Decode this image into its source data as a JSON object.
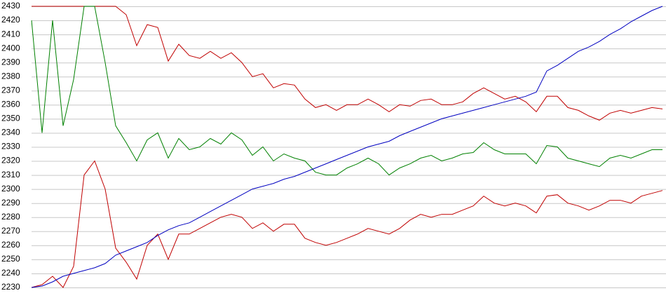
{
  "chart_data": {
    "type": "line",
    "categories": [
      null,
      null,
      null,
      null,
      null,
      null,
      null,
      null,
      null,
      null,
      null,
      null,
      null,
      null,
      null,
      null,
      null,
      null,
      null,
      null,
      null,
      null,
      null,
      null,
      null,
      null,
      null,
      null,
      null,
      null,
      null,
      null,
      null,
      null,
      null,
      null,
      null,
      null,
      null,
      null,
      null,
      null,
      null,
      null,
      null,
      null,
      null,
      null,
      null,
      null,
      null,
      null,
      null,
      null,
      null,
      null,
      null,
      null,
      null,
      null,
      null
    ],
    "series": [
      {
        "color": "#c00000",
        "values": [
          2430,
          2430,
          2430,
          2430,
          2430,
          2430,
          2430,
          2430,
          2430,
          2424,
          2402,
          2417,
          2415,
          2391,
          2403,
          2395,
          2393,
          2398,
          2393,
          2397,
          2390,
          2380,
          2382,
          2372,
          2375,
          2374,
          2364,
          2358,
          2360,
          2356,
          2360,
          2360,
          2364,
          2360,
          2355,
          2360,
          2359,
          2363,
          2364,
          2360,
          2360,
          2362,
          2368,
          2372,
          2368,
          2364,
          2366,
          2362,
          2355,
          2366,
          2366,
          2358,
          2356,
          2352,
          2349,
          2354,
          2356,
          2354,
          2356,
          2358,
          2357
        ]
      },
      {
        "color": "#008000",
        "values": [
          2420,
          2340,
          2420,
          2345,
          2378,
          2430,
          2430,
          2390,
          2345,
          2333,
          2320,
          2335,
          2340,
          2322,
          2336,
          2328,
          2330,
          2336,
          2332,
          2340,
          2335,
          2324,
          2330,
          2320,
          2325,
          2322,
          2320,
          2312,
          2310,
          2310,
          2315,
          2318,
          2322,
          2318,
          2310,
          2315,
          2318,
          2322,
          2324,
          2320,
          2322,
          2325,
          2326,
          2333,
          2328,
          2325,
          2325,
          2325,
          2318,
          2331,
          2330,
          2322,
          2320,
          2318,
          2316,
          2322,
          2324,
          2322,
          2325,
          2328,
          2328
        ]
      },
      {
        "color": "#c00000",
        "values": [
          2230,
          2232,
          2238,
          2230,
          2245,
          2310,
          2320,
          2300,
          2258,
          2248,
          2236,
          2260,
          2268,
          2250,
          2268,
          2268,
          2272,
          2276,
          2280,
          2282,
          2280,
          2272,
          2276,
          2270,
          2275,
          2275,
          2265,
          2262,
          2260,
          2262,
          2265,
          2268,
          2272,
          2270,
          2268,
          2272,
          2278,
          2282,
          2280,
          2282,
          2282,
          2285,
          2288,
          2295,
          2290,
          2288,
          2290,
          2288,
          2283,
          2295,
          2296,
          2290,
          2288,
          2285,
          2288,
          2292,
          2292,
          2290,
          2295,
          2297,
          2299
        ]
      },
      {
        "color": "#0000c0",
        "values": [
          2230,
          2231,
          2234,
          2238,
          2240,
          2242,
          2244,
          2247,
          2253,
          2256,
          2259,
          2262,
          2267,
          2271,
          2274,
          2276,
          2280,
          2284,
          2288,
          2292,
          2296,
          2300,
          2302,
          2304,
          2307,
          2309,
          2312,
          2315,
          2318,
          2321,
          2324,
          2327,
          2330,
          2332,
          2334,
          2338,
          2341,
          2344,
          2347,
          2350,
          2352,
          2354,
          2356,
          2358,
          2360,
          2362,
          2364,
          2366,
          2369,
          2384,
          2388,
          2393,
          2398,
          2401,
          2405,
          2410,
          2414,
          2419,
          2423,
          2427,
          2430
        ]
      }
    ],
    "ylim": [
      2230,
      2430
    ],
    "yticks": [
      2230,
      2240,
      2250,
      2260,
      2270,
      2280,
      2290,
      2300,
      2310,
      2320,
      2330,
      2340,
      2350,
      2360,
      2370,
      2380,
      2390,
      2400,
      2410,
      2420,
      2430
    ],
    "grid": true
  }
}
